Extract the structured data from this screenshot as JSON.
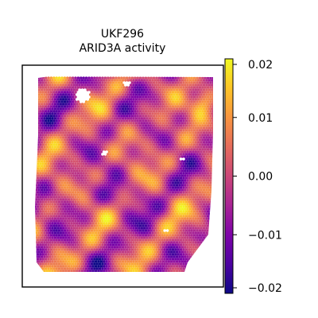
{
  "chart_data": {
    "type": "scatter",
    "subtype": "spatial hexagonal spot map",
    "title_line1": "UKF296",
    "title_line2": "ARID3A activity",
    "colormap": "plasma",
    "color_range": [
      -0.02,
      0.02
    ],
    "colorbar_ticks": [
      {
        "value": 0.02,
        "label": "0.02"
      },
      {
        "value": 0.01,
        "label": "0.01"
      },
      {
        "value": 0.0,
        "label": "0.00"
      },
      {
        "value": -0.01,
        "label": "−0.01"
      },
      {
        "value": -0.02,
        "label": "−0.02"
      }
    ],
    "axes_visible": false,
    "colors": {
      "plasma_low": "#0d0887",
      "plasma_mid": "#cc4778",
      "plasma_high": "#f0f921"
    }
  }
}
